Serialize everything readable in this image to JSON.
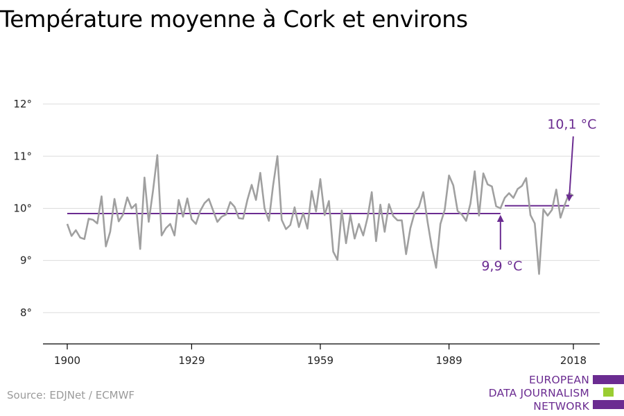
{
  "title": "Température moyenne à Cork et environs",
  "source": "Source: EDJNet / ECMWF",
  "logo": {
    "lines": [
      "EUROPEAN",
      "DATA JOURNALISM",
      "NETWORK"
    ],
    "colors": {
      "purple": "#6b2c91",
      "green": "#9acd32"
    }
  },
  "colors": {
    "line": "#a0a0a0",
    "avg": "#6b2c91",
    "grid": "#dcdcdc",
    "axis": "#000000"
  },
  "chart_data": {
    "type": "line",
    "title": "Température moyenne à Cork et environs",
    "xlabel": "",
    "ylabel": "",
    "x_ticks": [
      1900,
      1929,
      1959,
      1989,
      2018
    ],
    "y_ticks": [
      8,
      9,
      10,
      11,
      12
    ],
    "y_tick_labels": [
      "8°",
      "9°",
      "10°",
      "11°",
      "12°"
    ],
    "xlim": [
      1900,
      2018
    ],
    "ylim": [
      7.4,
      12.2
    ],
    "grid": true,
    "series": [
      {
        "x_start": 1900,
        "values": [
          9.7,
          9.47,
          9.58,
          9.44,
          9.41,
          9.8,
          9.78,
          9.71,
          10.23,
          9.27,
          9.55,
          10.18,
          9.75,
          9.88,
          10.21,
          10.0,
          10.08,
          9.22,
          10.59,
          9.74,
          10.34,
          11.02,
          9.48,
          9.62,
          9.7,
          9.48,
          10.16,
          9.84,
          10.19,
          9.79,
          9.7,
          9.95,
          10.1,
          10.18,
          9.96,
          9.74,
          9.84,
          9.88,
          10.12,
          10.03,
          9.81,
          9.8,
          10.16,
          10.45,
          10.16,
          10.68,
          10.0,
          9.76,
          10.44,
          11.0,
          9.78,
          9.6,
          9.68,
          10.02,
          9.64,
          9.91,
          9.61,
          10.33,
          9.94,
          10.56,
          9.87,
          10.14,
          9.17,
          9.01,
          9.96,
          9.33,
          9.87,
          9.42,
          9.7,
          9.48,
          9.82,
          10.31,
          9.37,
          10.07,
          9.55,
          10.08,
          9.85,
          9.77,
          9.77,
          9.12,
          9.62,
          9.92,
          10.03,
          10.31,
          9.74,
          9.25,
          8.86,
          9.7,
          9.97,
          10.63,
          10.44,
          9.95,
          9.88,
          9.76,
          10.09,
          10.71,
          9.86,
          10.67,
          10.46,
          10.42,
          10.04,
          10.0,
          10.2,
          10.29,
          10.2,
          10.37,
          10.43,
          10.58,
          9.87,
          9.71,
          8.74,
          9.98,
          9.86,
          9.97,
          10.36,
          9.82,
          10.07,
          10.29,
          10.24
        ]
      }
    ],
    "averages": [
      {
        "label": "9,9 °C",
        "value": 9.9,
        "from": 1900,
        "to": 2001
      },
      {
        "label": "10,1 °C",
        "value": 10.05,
        "from": 2002,
        "to": 2017
      }
    ]
  }
}
